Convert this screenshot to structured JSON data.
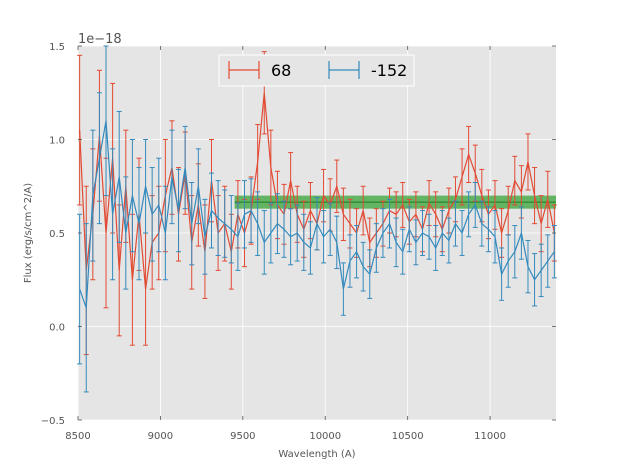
{
  "chart_data": {
    "type": "line",
    "title": "",
    "xlabel": "Wavelength (A)",
    "ylabel": "Flux (erg/s/cm^2/A)",
    "offset_label": "1e−18",
    "xlim": [
      8500,
      11400
    ],
    "ylim": [
      -0.5,
      1.5
    ],
    "x_ticks": [
      8500,
      9000,
      9500,
      10000,
      10500,
      11000
    ],
    "y_ticks": [
      -0.5,
      0.0,
      0.5,
      1.0,
      1.5
    ],
    "y_tick_labels": [
      "−0.5",
      "0.0",
      "0.5",
      "1.0",
      "1.5"
    ],
    "grid": true,
    "legend_position": "top-center",
    "series": [
      {
        "name": "68",
        "color": "#e24a33",
        "x": [
          8510,
          8550,
          8590,
          8630,
          8670,
          8710,
          8750,
          8790,
          8830,
          8870,
          8910,
          8950,
          8990,
          9030,
          9070,
          9110,
          9150,
          9190,
          9230,
          9270,
          9310,
          9350,
          9390,
          9430,
          9470,
          9510,
          9550,
          9590,
          9630,
          9670,
          9710,
          9750,
          9790,
          9830,
          9870,
          9910,
          9950,
          9990,
          10030,
          10070,
          10110,
          10150,
          10190,
          10230,
          10270,
          10310,
          10350,
          10390,
          10430,
          10470,
          10510,
          10550,
          10590,
          10630,
          10670,
          10710,
          10750,
          10790,
          10830,
          10870,
          10910,
          10950,
          10990,
          11030,
          11070,
          11110,
          11150,
          11190,
          11230,
          11270,
          11310,
          11350,
          11390
        ],
        "y": [
          1.05,
          0.3,
          0.6,
          1.02,
          0.5,
          0.9,
          0.3,
          0.75,
          0.25,
          0.6,
          0.2,
          0.45,
          0.5,
          0.7,
          0.85,
          0.6,
          0.82,
          0.45,
          0.65,
          0.4,
          0.78,
          0.5,
          0.55,
          0.4,
          0.6,
          0.5,
          0.62,
          0.88,
          1.25,
          0.85,
          0.65,
          0.6,
          0.78,
          0.6,
          0.52,
          0.62,
          0.55,
          0.7,
          0.65,
          0.75,
          0.6,
          0.55,
          0.5,
          0.62,
          0.45,
          0.5,
          0.55,
          0.62,
          0.6,
          0.65,
          0.56,
          0.6,
          0.52,
          0.66,
          0.6,
          0.52,
          0.62,
          0.68,
          0.8,
          0.92,
          0.82,
          0.7,
          0.6,
          0.65,
          0.5,
          0.62,
          0.78,
          0.72,
          0.88,
          0.7,
          0.55,
          0.68,
          0.5
        ],
        "err": [
          0.4,
          0.45,
          0.35,
          0.35,
          0.4,
          0.4,
          0.35,
          0.3,
          0.35,
          0.3,
          0.3,
          0.25,
          0.25,
          0.3,
          0.25,
          0.25,
          0.22,
          0.25,
          0.22,
          0.25,
          0.22,
          0.2,
          0.2,
          0.2,
          0.18,
          0.18,
          0.18,
          0.2,
          0.22,
          0.2,
          0.18,
          0.16,
          0.15,
          0.15,
          0.15,
          0.15,
          0.14,
          0.14,
          0.14,
          0.14,
          0.14,
          0.13,
          0.13,
          0.13,
          0.13,
          0.13,
          0.12,
          0.12,
          0.12,
          0.12,
          0.12,
          0.12,
          0.12,
          0.12,
          0.12,
          0.12,
          0.12,
          0.12,
          0.15,
          0.15,
          0.15,
          0.14,
          0.13,
          0.13,
          0.13,
          0.13,
          0.13,
          0.14,
          0.15,
          0.15,
          0.15,
          0.15,
          0.15
        ]
      },
      {
        "name": "-152",
        "color": "#348abd",
        "x": [
          8510,
          8550,
          8590,
          8630,
          8670,
          8710,
          8750,
          8790,
          8830,
          8870,
          8910,
          8950,
          8990,
          9030,
          9070,
          9110,
          9150,
          9190,
          9230,
          9270,
          9310,
          9350,
          9390,
          9430,
          9470,
          9510,
          9550,
          9590,
          9630,
          9670,
          9710,
          9750,
          9790,
          9830,
          9870,
          9910,
          9950,
          9990,
          10030,
          10070,
          10110,
          10150,
          10190,
          10230,
          10270,
          10310,
          10350,
          10390,
          10430,
          10470,
          10510,
          10550,
          10590,
          10630,
          10670,
          10710,
          10750,
          10790,
          10830,
          10870,
          10910,
          10950,
          10990,
          11030,
          11070,
          11110,
          11150,
          11190,
          11230,
          11270,
          11310,
          11350,
          11390
        ],
        "y": [
          0.2,
          0.1,
          0.7,
          0.9,
          1.1,
          0.6,
          0.8,
          0.5,
          0.7,
          0.55,
          0.75,
          0.6,
          0.65,
          0.5,
          0.8,
          0.62,
          0.85,
          0.55,
          0.75,
          0.48,
          0.62,
          0.58,
          0.55,
          0.52,
          0.48,
          0.6,
          0.62,
          0.55,
          0.45,
          0.5,
          0.55,
          0.52,
          0.48,
          0.5,
          0.45,
          0.42,
          0.55,
          0.48,
          0.52,
          0.45,
          0.2,
          0.35,
          0.4,
          0.32,
          0.28,
          0.42,
          0.5,
          0.55,
          0.45,
          0.4,
          0.52,
          0.45,
          0.5,
          0.48,
          0.42,
          0.5,
          0.46,
          0.55,
          0.5,
          0.6,
          0.65,
          0.55,
          0.52,
          0.48,
          0.28,
          0.35,
          0.4,
          0.5,
          0.32,
          0.25,
          0.3,
          0.35,
          0.4
        ],
        "err": [
          0.4,
          0.45,
          0.35,
          0.35,
          0.4,
          0.35,
          0.35,
          0.3,
          0.3,
          0.3,
          0.25,
          0.25,
          0.25,
          0.25,
          0.25,
          0.22,
          0.22,
          0.22,
          0.2,
          0.2,
          0.2,
          0.2,
          0.18,
          0.18,
          0.18,
          0.18,
          0.17,
          0.17,
          0.17,
          0.16,
          0.16,
          0.15,
          0.15,
          0.15,
          0.15,
          0.14,
          0.14,
          0.14,
          0.14,
          0.14,
          0.14,
          0.14,
          0.14,
          0.13,
          0.13,
          0.13,
          0.13,
          0.13,
          0.13,
          0.12,
          0.12,
          0.12,
          0.12,
          0.12,
          0.12,
          0.12,
          0.12,
          0.12,
          0.12,
          0.12,
          0.12,
          0.12,
          0.12,
          0.14,
          0.14,
          0.14,
          0.14,
          0.14,
          0.14,
          0.14,
          0.14,
          0.14,
          0.14
        ]
      }
    ],
    "band": {
      "color": "#2ca02c",
      "x_start": 9450,
      "x_end": 11400,
      "y_low": 0.63,
      "y_high": 0.7,
      "center": 0.665
    }
  },
  "legend": {
    "items": [
      {
        "label": "68",
        "color": "#e24a33"
      },
      {
        "label": "-152",
        "color": "#348abd"
      }
    ]
  }
}
